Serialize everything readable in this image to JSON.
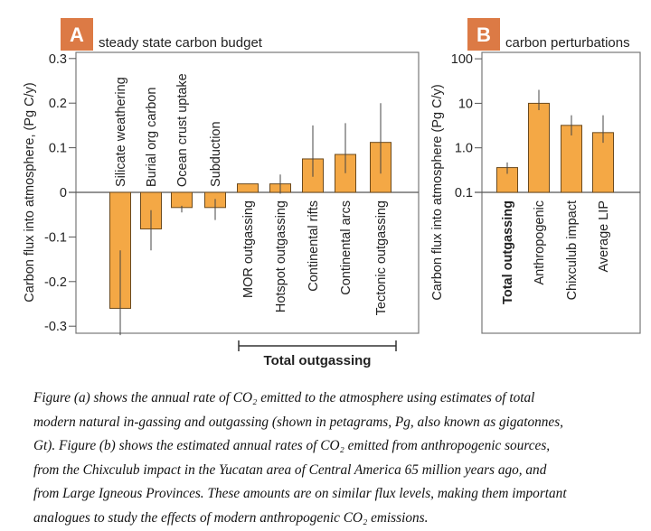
{
  "colors": {
    "bar": "#f4a845",
    "bar_stroke": "#6b4a1e",
    "badge": "#dc7a45",
    "axis": "#555555"
  },
  "chart_data": [
    {
      "type": "bar",
      "panel": "A",
      "title": "steady state carbon budget",
      "ylabel": "Carbon flux into atmosphere, (Pg C/y)",
      "ylim": [
        -0.32,
        0.3
      ],
      "yticks": [
        "0.3",
        "0.2",
        "0.1",
        "0",
        "-0.1",
        "-0.2",
        "-0.3"
      ],
      "ytick_values": [
        0.3,
        0.2,
        0.1,
        0,
        -0.1,
        -0.2,
        -0.3
      ],
      "grid": false,
      "categories": [
        "Silicate weathering",
        "Burial org carbon",
        "Ocean crust uptake",
        "Subduction",
        "MOR outgassing",
        "Hotspot outgassing",
        "Continental rifts",
        "Continental arcs",
        "Tectonic outgassing"
      ],
      "values": [
        -0.26,
        -0.082,
        -0.034,
        -0.034,
        0.019,
        0.019,
        0.075,
        0.085,
        0.112
      ],
      "error_low": [
        -0.32,
        -0.13,
        -0.045,
        -0.062,
        null,
        -0.003,
        0.035,
        0.043,
        0.042
      ],
      "error_high": [
        -0.13,
        -0.04,
        -0.03,
        -0.015,
        null,
        0.04,
        0.15,
        0.155,
        0.2
      ],
      "bracket_label": "Total outgassing"
    },
    {
      "type": "bar",
      "panel": "B",
      "title": "carbon perturbations",
      "ylabel": "Carbon flux into atmosphere (Pg C/y)",
      "yscale": "log",
      "ylim": [
        0.1,
        100
      ],
      "yticks": [
        "100",
        "10",
        "1.0",
        "0.1"
      ],
      "ytick_values": [
        100,
        10,
        1,
        0.1
      ],
      "grid": false,
      "categories": [
        "Total outgassing",
        "Anthropogenic",
        "Chixculub impact",
        "Average LIP"
      ],
      "values": [
        0.36,
        10,
        3.2,
        2.2
      ],
      "error_low": [
        0.26,
        7,
        1.9,
        1.3
      ],
      "error_high": [
        0.47,
        20,
        5.4,
        5.4
      ]
    }
  ],
  "caption": {
    "lines": [
      "Figure (a) shows the annual rate of CO₂ emitted to the atmosphere using estimates of total",
      "modern natural in-gassing and outgassing (shown in petagrams, Pg, also known as gigatonnes,",
      "Gt).  Figure (b) shows the estimated annual rates of CO₂ emitted from anthropogenic sources,",
      "from the Chixculub impact in the Yucatan area of Central America 65 million years ago, and",
      "from Large Igneous Provinces. These amounts are on similar flux levels, making them important",
      "analogues to study the effects of modern anthropogenic CO₂ emissions."
    ]
  },
  "badges": {
    "a": "A",
    "b": "B"
  }
}
